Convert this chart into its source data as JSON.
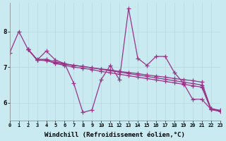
{
  "background_color": "#c8eaf0",
  "line_color": "#993388",
  "marker": "+",
  "markersize": 4,
  "linewidth": 0.9,
  "xlabel": "Windchill (Refroidissement éolien,°C)",
  "xlabel_fontsize": 6.5,
  "yticks": [
    6,
    7,
    8
  ],
  "ylim": [
    5.5,
    8.8
  ],
  "xlim": [
    0,
    23
  ],
  "xticks": [
    0,
    1,
    2,
    3,
    4,
    5,
    6,
    7,
    8,
    9,
    10,
    11,
    12,
    13,
    14,
    15,
    16,
    17,
    18,
    19,
    20,
    21,
    22,
    23
  ],
  "xtick_fontsize": 5.0,
  "ytick_fontsize": 6.5,
  "grid_color": "#b8d8e0",
  "series": [
    {
      "x": [
        0,
        1,
        2,
        3,
        4,
        5,
        6,
        7,
        8,
        9,
        10,
        11,
        12,
        13,
        14,
        15,
        16,
        17,
        18,
        19,
        20,
        21,
        22,
        23
      ],
      "y": [
        7.4,
        8.0,
        7.5,
        7.2,
        7.45,
        7.2,
        7.1,
        6.55,
        5.73,
        5.8,
        6.65,
        7.05,
        6.65,
        8.65,
        7.25,
        7.05,
        7.3,
        7.3,
        6.85,
        6.55,
        6.1,
        6.1,
        5.82,
        5.77
      ]
    },
    {
      "x": [
        2,
        3,
        4,
        5,
        6,
        7,
        8,
        9,
        10,
        11,
        12,
        13,
        14,
        15,
        16,
        17,
        18,
        19,
        20,
        21,
        22,
        23
      ],
      "y": [
        7.5,
        7.2,
        7.2,
        7.1,
        7.05,
        7.0,
        6.97,
        6.93,
        6.88,
        6.84,
        6.8,
        6.76,
        6.72,
        6.68,
        6.64,
        6.6,
        6.56,
        6.52,
        6.48,
        6.44,
        5.81,
        5.76
      ]
    },
    {
      "x": [
        2,
        3,
        4,
        5,
        6,
        7,
        8,
        9,
        10,
        11,
        12,
        13,
        14,
        15,
        16,
        17,
        18,
        19,
        20,
        21,
        22,
        23
      ],
      "y": [
        7.5,
        7.2,
        7.18,
        7.12,
        7.08,
        7.05,
        7.02,
        6.98,
        6.95,
        6.92,
        6.88,
        6.85,
        6.82,
        6.78,
        6.75,
        6.72,
        6.68,
        6.65,
        6.62,
        6.58,
        5.83,
        5.78
      ]
    },
    {
      "x": [
        2,
        3,
        4,
        5,
        6,
        7,
        8,
        9,
        10,
        11,
        12,
        13,
        14,
        15,
        16,
        17,
        18,
        19,
        20,
        21,
        22,
        23
      ],
      "y": [
        7.5,
        7.22,
        7.22,
        7.15,
        7.1,
        7.05,
        7.02,
        6.98,
        6.94,
        6.9,
        6.86,
        6.82,
        6.78,
        6.74,
        6.7,
        6.66,
        6.62,
        6.58,
        6.54,
        6.5,
        5.84,
        5.79
      ]
    }
  ]
}
